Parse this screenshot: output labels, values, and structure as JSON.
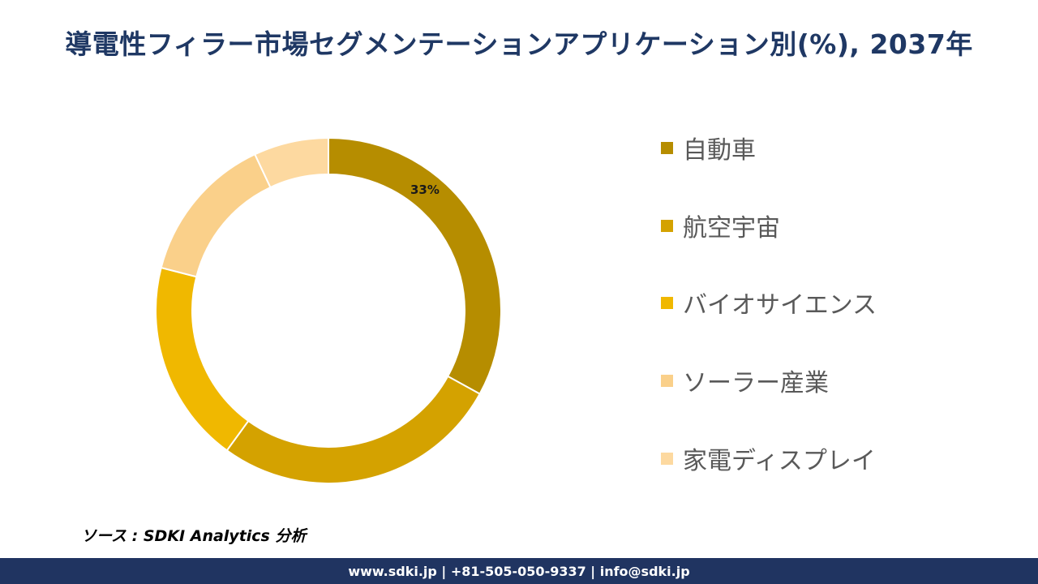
{
  "title": "導電性フィラー市場セグメンテーションアプリケーション別(%), 2037年",
  "chart_data": {
    "type": "pie",
    "variant": "donut",
    "categories": [
      "自動車",
      "航空宇宙",
      "バイオサイエンス",
      "ソーラー産業",
      "家電ディスプレイ"
    ],
    "values": [
      33,
      27,
      19,
      14,
      7
    ],
    "colors": [
      "#b68d00",
      "#d4a200",
      "#f0b800",
      "#fad08a",
      "#fdd9a0"
    ],
    "data_labels": [
      {
        "category": "自動車",
        "text": "33%"
      }
    ],
    "start_angle": "12 o'clock",
    "direction": "clockwise",
    "legend_position": "right"
  },
  "source": "ソース : SDKI Analytics 分析",
  "footer": "www.sdki.jp | +81-505-050-9337 | info@sdki.jp"
}
